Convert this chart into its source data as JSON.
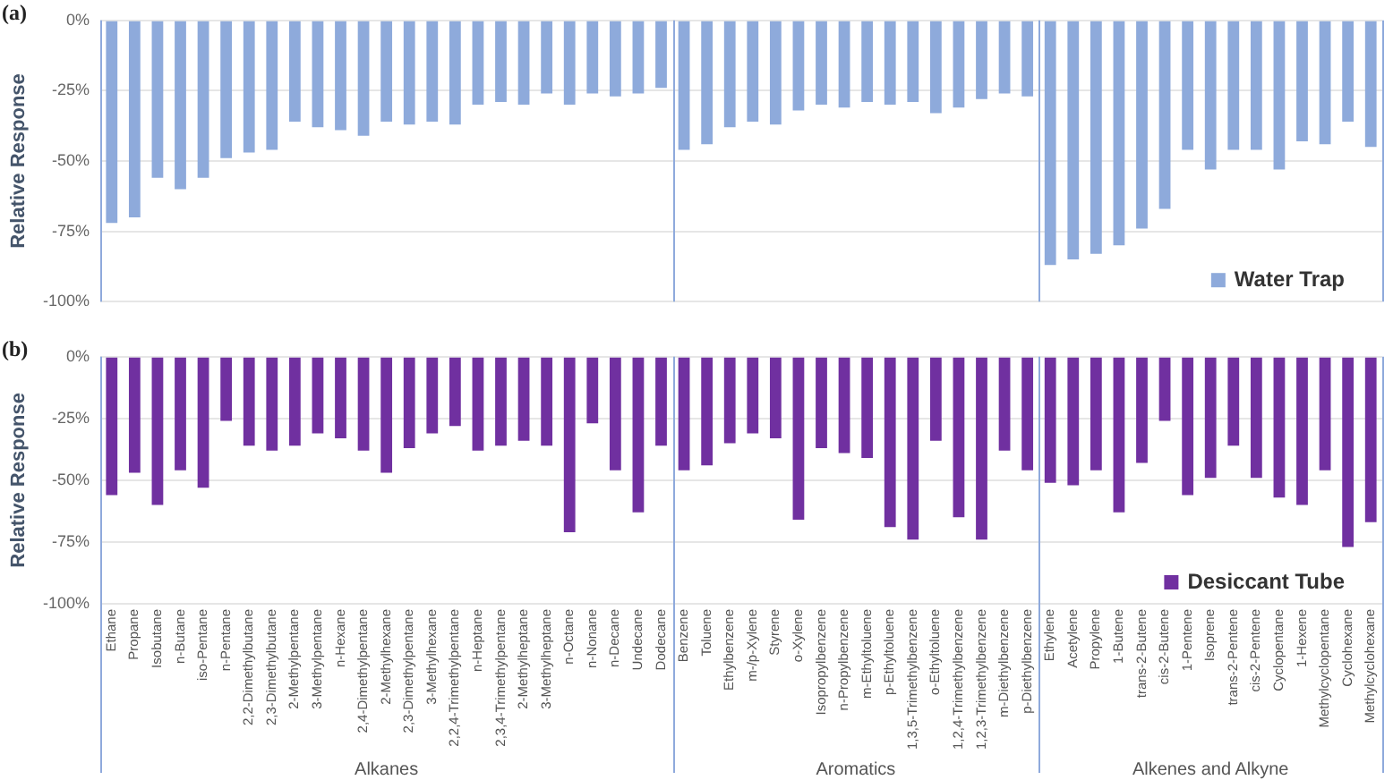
{
  "chart_data": [
    {
      "type": "bar",
      "title": "(a)",
      "ylabel": "Relative Response",
      "categories": [
        null,
        null,
        null,
        null,
        null,
        null,
        null,
        null,
        null,
        null,
        null,
        null,
        null,
        null,
        null,
        null,
        null,
        null,
        null,
        null,
        null,
        null,
        null,
        null,
        null,
        null,
        null,
        null,
        null,
        null,
        null,
        null,
        null,
        null,
        null,
        null,
        null,
        null,
        null,
        null,
        null,
        null,
        null,
        null,
        null,
        null,
        null,
        null,
        null,
        null,
        null,
        null,
        null,
        null,
        null,
        null
      ],
      "series": [
        {
          "name": "Water Trap",
          "color": "#8eaadb",
          "values": [
            -72,
            -70,
            -56,
            -60,
            -56,
            -49,
            -47,
            -46,
            -36,
            -38,
            -39,
            -41,
            -36,
            -37,
            -36,
            -37,
            -30,
            -29,
            -30,
            -26,
            -30,
            -26,
            -27,
            -26,
            -24,
            -46,
            -44,
            -38,
            -36,
            -37,
            -32,
            -30,
            -31,
            -29,
            -30,
            -29,
            -33,
            -31,
            -28,
            -26,
            -27,
            -87,
            -85,
            -83,
            -80,
            -74,
            -67,
            -46,
            -53,
            -46,
            -46,
            -53,
            -43,
            -44,
            -36,
            -45
          ]
        }
      ],
      "ylim": [
        -100,
        0
      ],
      "yticks": [
        {
          "value": -100,
          "label": "-100%"
        },
        {
          "value": -75,
          "label": "-75%"
        },
        {
          "value": -50,
          "label": "-50%"
        },
        {
          "value": -25,
          "label": "-25%"
        },
        {
          "value": 0,
          "label": "0%"
        }
      ],
      "grid": "y",
      "legend": "bottom right",
      "tick_labels": "y"
    },
    {
      "type": "bar",
      "title": "(b)",
      "ylabel": "Relative Response",
      "categories": [
        "Ethane",
        "Propane",
        "Isobutane",
        "n-Butane",
        "iso-Pentane",
        "n-Pentane",
        "2,2-Dimethylbutane",
        "2,3-Dimethylbutane",
        "2-Methylpentane",
        "3-Methylpentane",
        "n-Hexane",
        "2,4-Dimethylpentane",
        "2-Methylhexane",
        "2,3-Dimethylpentane",
        "3-Methylhexane",
        "2,2,4-Trimethylpentane",
        "n-Heptane",
        "2,3,4-Trimethylpentane",
        "2-Methylheptane",
        "3-Methylheptane",
        "n-Octane",
        "n-Nonane",
        "n-Decane",
        "Undecane",
        "Dodecane",
        "Benzene",
        "Toluene",
        "Ethylbenzene",
        "m-/p-Xylene",
        "Styrene",
        "o-Xylene",
        "Isopropylbenzene",
        "n-Propylbenzene",
        "m-Ethyltoluene",
        "p-Ethyltoluene",
        "1,3,5-Trimethylbenzene",
        "o-Ethyltoluene",
        "1,2,4-Trimethylbenzene",
        "1,2,3-Trimethylbenzene",
        "m-Diethylbenzene",
        "p-Diethylbenzene",
        "Ethylene",
        "Acetylene",
        "Propylene",
        "1-Butene",
        "trans-2-Butene",
        "cis-2-Butene",
        "1-Pentene",
        "Isoprene",
        "trans-2-Pentene",
        "cis-2-Pentene",
        "Cyclopentane",
        "1-Hexene",
        "Methylcyclopentane",
        "Cyclohexane",
        "Methylcyclohexane"
      ],
      "series": [
        {
          "name": "Desiccant Tube",
          "color": "#7030a0",
          "values": [
            -56,
            -47,
            -60,
            -46,
            -53,
            -26,
            -36,
            -38,
            -36,
            -31,
            -33,
            -38,
            -47,
            -37,
            -31,
            -28,
            -38,
            -36,
            -34,
            -36,
            -71,
            -27,
            -46,
            -63,
            -36,
            -46,
            -44,
            -35,
            -31,
            -33,
            -66,
            -37,
            -39,
            -41,
            -69,
            -74,
            -34,
            -65,
            -74,
            -38,
            -46,
            -51,
            -52,
            -46,
            -63,
            -43,
            -26,
            -56,
            -49,
            -36,
            -49,
            -57,
            -60,
            -46,
            -77,
            -67
          ]
        }
      ],
      "ylim": [
        -100,
        0
      ],
      "yticks": [
        {
          "value": -100,
          "label": "-100%"
        },
        {
          "value": -75,
          "label": "-75%"
        },
        {
          "value": -50,
          "label": "-50%"
        },
        {
          "value": -25,
          "label": "-25%"
        },
        {
          "value": 0,
          "label": "0%"
        }
      ],
      "grid": "y",
      "legend": "bottom right",
      "annotations": [
        "Alkanes",
        "Aromatics",
        "Alkenes and Alkyne"
      ]
    }
  ]
}
